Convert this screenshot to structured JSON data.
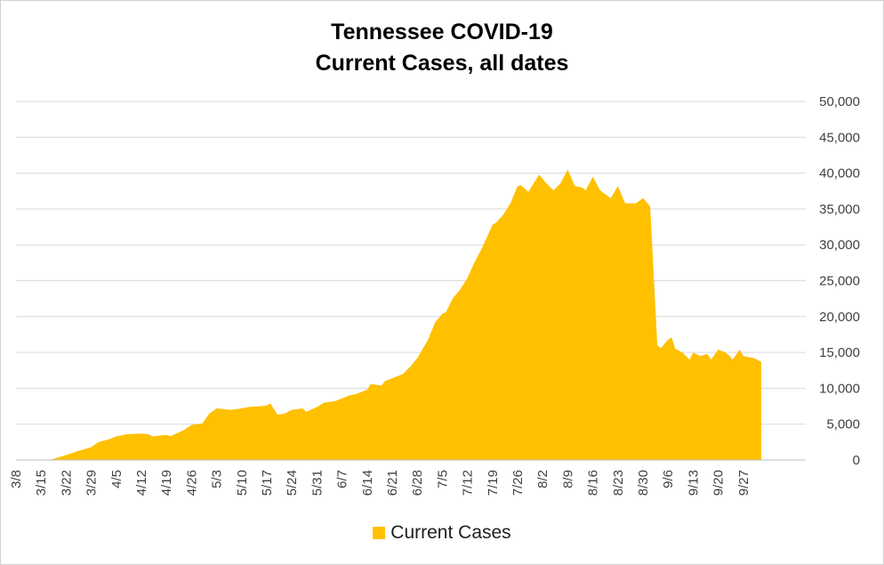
{
  "colors": {
    "area": "#FFC000",
    "grid": "#d9d9d9",
    "axis": "#bfbfbf"
  },
  "chart_data": {
    "type": "area",
    "title_line1": "Tennessee COVID-19",
    "title_line2": "Current Cases, all dates",
    "xlabel": "",
    "ylabel": "",
    "ylim": [
      0,
      50000
    ],
    "y_ticks": [
      "0",
      "5,000",
      "10,000",
      "15,000",
      "20,000",
      "25,000",
      "30,000",
      "35,000",
      "40,000",
      "45,000",
      "50,000"
    ],
    "x_tick_labels": [
      "3/8",
      "3/15",
      "3/22",
      "3/29",
      "4/5",
      "4/12",
      "4/19",
      "4/26",
      "5/3",
      "5/10",
      "5/17",
      "5/24",
      "5/31",
      "6/7",
      "6/14",
      "6/21",
      "6/28",
      "7/5",
      "7/12",
      "7/19",
      "7/26",
      "8/2",
      "8/9",
      "8/16",
      "8/23",
      "8/30",
      "9/6",
      "9/13",
      "9/20",
      "9/27"
    ],
    "grid": true,
    "legend_position": "bottom",
    "series": [
      {
        "name": "Current Cases",
        "points": [
          [
            "3/8",
            0
          ],
          [
            "3/15",
            0
          ],
          [
            "3/18",
            100
          ],
          [
            "3/22",
            700
          ],
          [
            "3/25",
            1200
          ],
          [
            "3/29",
            1800
          ],
          [
            "3/31",
            2500
          ],
          [
            "4/3",
            2900
          ],
          [
            "4/5",
            3300
          ],
          [
            "4/8",
            3600
          ],
          [
            "4/12",
            3700
          ],
          [
            "4/14",
            3600
          ],
          [
            "4/15",
            3300
          ],
          [
            "4/19",
            3500
          ],
          [
            "4/20",
            3300
          ],
          [
            "4/24",
            4200
          ],
          [
            "4/26",
            4900
          ],
          [
            "4/29",
            5100
          ],
          [
            "5/1",
            6500
          ],
          [
            "5/3",
            7200
          ],
          [
            "5/7",
            7000
          ],
          [
            "5/10",
            7200
          ],
          [
            "5/12",
            7400
          ],
          [
            "5/15",
            7500
          ],
          [
            "5/17",
            7600
          ],
          [
            "5/18",
            7900
          ],
          [
            "5/20",
            6300
          ],
          [
            "5/22",
            6500
          ],
          [
            "5/24",
            7000
          ],
          [
            "5/27",
            7200
          ],
          [
            "5/28",
            6700
          ],
          [
            "5/31",
            7400
          ],
          [
            "6/2",
            8000
          ],
          [
            "6/5",
            8200
          ],
          [
            "6/7",
            8600
          ],
          [
            "6/9",
            9000
          ],
          [
            "6/11",
            9200
          ],
          [
            "6/14",
            9800
          ],
          [
            "6/15",
            10600
          ],
          [
            "6/18",
            10400
          ],
          [
            "6/19",
            11000
          ],
          [
            "6/21",
            11400
          ],
          [
            "6/24",
            12000
          ],
          [
            "6/26",
            13000
          ],
          [
            "6/28",
            14200
          ],
          [
            "7/1",
            16800
          ],
          [
            "7/3",
            19200
          ],
          [
            "7/5",
            20400
          ],
          [
            "7/6",
            20600
          ],
          [
            "7/8",
            22600
          ],
          [
            "7/10",
            23800
          ],
          [
            "7/12",
            25400
          ],
          [
            "7/14",
            27600
          ],
          [
            "7/16",
            29500
          ],
          [
            "7/19",
            32800
          ],
          [
            "7/20",
            33100
          ],
          [
            "7/22",
            34200
          ],
          [
            "7/24",
            35800
          ],
          [
            "7/26",
            38200
          ],
          [
            "7/27",
            38300
          ],
          [
            "7/29",
            37400
          ],
          [
            "8/1",
            39800
          ],
          [
            "8/2",
            39200
          ],
          [
            "8/3",
            38600
          ],
          [
            "8/5",
            37600
          ],
          [
            "8/7",
            38600
          ],
          [
            "8/9",
            40500
          ],
          [
            "8/11",
            38200
          ],
          [
            "8/13",
            38000
          ],
          [
            "8/14",
            37600
          ],
          [
            "8/16",
            39500
          ],
          [
            "8/18",
            37600
          ],
          [
            "8/21",
            36500
          ],
          [
            "8/23",
            38200
          ],
          [
            "8/25",
            35800
          ],
          [
            "8/28",
            35800
          ],
          [
            "8/30",
            36500
          ],
          [
            "9/1",
            35400
          ],
          [
            "9/3",
            16000
          ],
          [
            "9/4",
            15600
          ],
          [
            "9/6",
            16800
          ],
          [
            "9/7",
            17100
          ],
          [
            "9/8",
            15500
          ],
          [
            "9/10",
            15000
          ],
          [
            "9/12",
            14000
          ],
          [
            "9/13",
            15000
          ],
          [
            "9/15",
            14500
          ],
          [
            "9/17",
            14800
          ],
          [
            "9/18",
            14000
          ],
          [
            "9/20",
            15400
          ],
          [
            "9/22",
            15000
          ],
          [
            "9/23",
            14600
          ],
          [
            "9/24",
            14000
          ],
          [
            "9/26",
            15400
          ],
          [
            "9/27",
            14500
          ],
          [
            "9/30",
            14200
          ],
          [
            "10/2",
            13700
          ]
        ]
      }
    ]
  }
}
